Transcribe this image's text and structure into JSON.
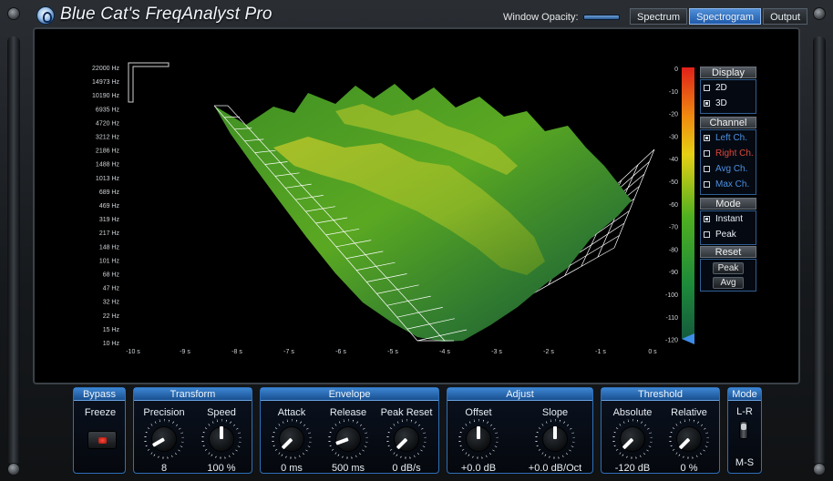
{
  "window": {
    "title": "Blue Cat's FreqAnalyst Pro",
    "opacity_label": "Window Opacity:",
    "tabs": [
      {
        "label": "Spectrum",
        "active": false
      },
      {
        "label": "Spectrogram",
        "active": true
      },
      {
        "label": "Output",
        "active": false
      }
    ]
  },
  "graph": {
    "freq_ticks": [
      "22000 Hz",
      "14973 Hz",
      "10190 Hz",
      "6935 Hz",
      "4720 Hz",
      "3212 Hz",
      "2186 Hz",
      "1488 Hz",
      "1013 Hz",
      "689 Hz",
      "469 Hz",
      "319 Hz",
      "217 Hz",
      "148 Hz",
      "101 Hz",
      "68 Hz",
      "47 Hz",
      "32 Hz",
      "22 Hz",
      "15 Hz",
      "10 Hz"
    ],
    "time_ticks": [
      "-10 s",
      "-9 s",
      "-8 s",
      "-7 s",
      "-6 s",
      "-5 s",
      "-4 s",
      "-3 s",
      "-2 s",
      "-1 s",
      "0 s"
    ],
    "db_ticks": [
      "0",
      "-10",
      "-20",
      "-30",
      "-40",
      "-50",
      "-60",
      "-70",
      "-80",
      "-90",
      "-100",
      "-110",
      "-120"
    ],
    "colors": {
      "surface_dark": "#1f5a2a",
      "surface_mid": "#4f9c1f",
      "surface_light": "#c8c72a",
      "grid": "#ffffff"
    }
  },
  "side_panel": {
    "display": {
      "title": "Display",
      "options": [
        {
          "label": "2D",
          "checked": false
        },
        {
          "label": "3D",
          "checked": true
        }
      ]
    },
    "channel": {
      "title": "Channel",
      "options": [
        {
          "label": "Left Ch.",
          "checked": true,
          "color": "#4d8fe0"
        },
        {
          "label": "Right Ch.",
          "checked": false,
          "color": "#e0463a"
        },
        {
          "label": "Avg Ch.",
          "checked": false,
          "color": "#4d8fe0"
        },
        {
          "label": "Max Ch.",
          "checked": false,
          "color": "#4d8fe0"
        }
      ]
    },
    "mode": {
      "title": "Mode",
      "options": [
        {
          "label": "Instant",
          "checked": true
        },
        {
          "label": "Peak",
          "checked": false
        }
      ]
    },
    "reset": {
      "title": "Reset",
      "buttons": [
        "Peak",
        "Avg"
      ]
    }
  },
  "controls": {
    "bypass": {
      "title": "Bypass",
      "freeze_label": "Freeze"
    },
    "transform": {
      "title": "Transform",
      "precision": {
        "label": "Precision",
        "value": "8",
        "angle": 240
      },
      "speed": {
        "label": "Speed",
        "value": "100 %",
        "angle": 0
      }
    },
    "envelope": {
      "title": "Envelope",
      "attack": {
        "label": "Attack",
        "value": "0 ms",
        "angle": 225
      },
      "release": {
        "label": "Release",
        "value": "500 ms",
        "angle": 250
      },
      "peak_reset": {
        "label": "Peak Reset",
        "value": "0 dB/s",
        "angle": 225
      }
    },
    "adjust": {
      "title": "Adjust",
      "offset": {
        "label": "Offset",
        "value": "+0.0 dB",
        "angle": 0
      },
      "slope": {
        "label": "Slope",
        "value": "+0.0 dB/Oct",
        "angle": 0
      }
    },
    "threshold": {
      "title": "Threshold",
      "absolute": {
        "label": "Absolute",
        "value": "-120 dB",
        "angle": 225
      },
      "relative": {
        "label": "Relative",
        "value": "0 %",
        "angle": 225
      }
    },
    "mode": {
      "title": "Mode",
      "top_label": "L-R",
      "bottom_label": "M-S"
    }
  }
}
